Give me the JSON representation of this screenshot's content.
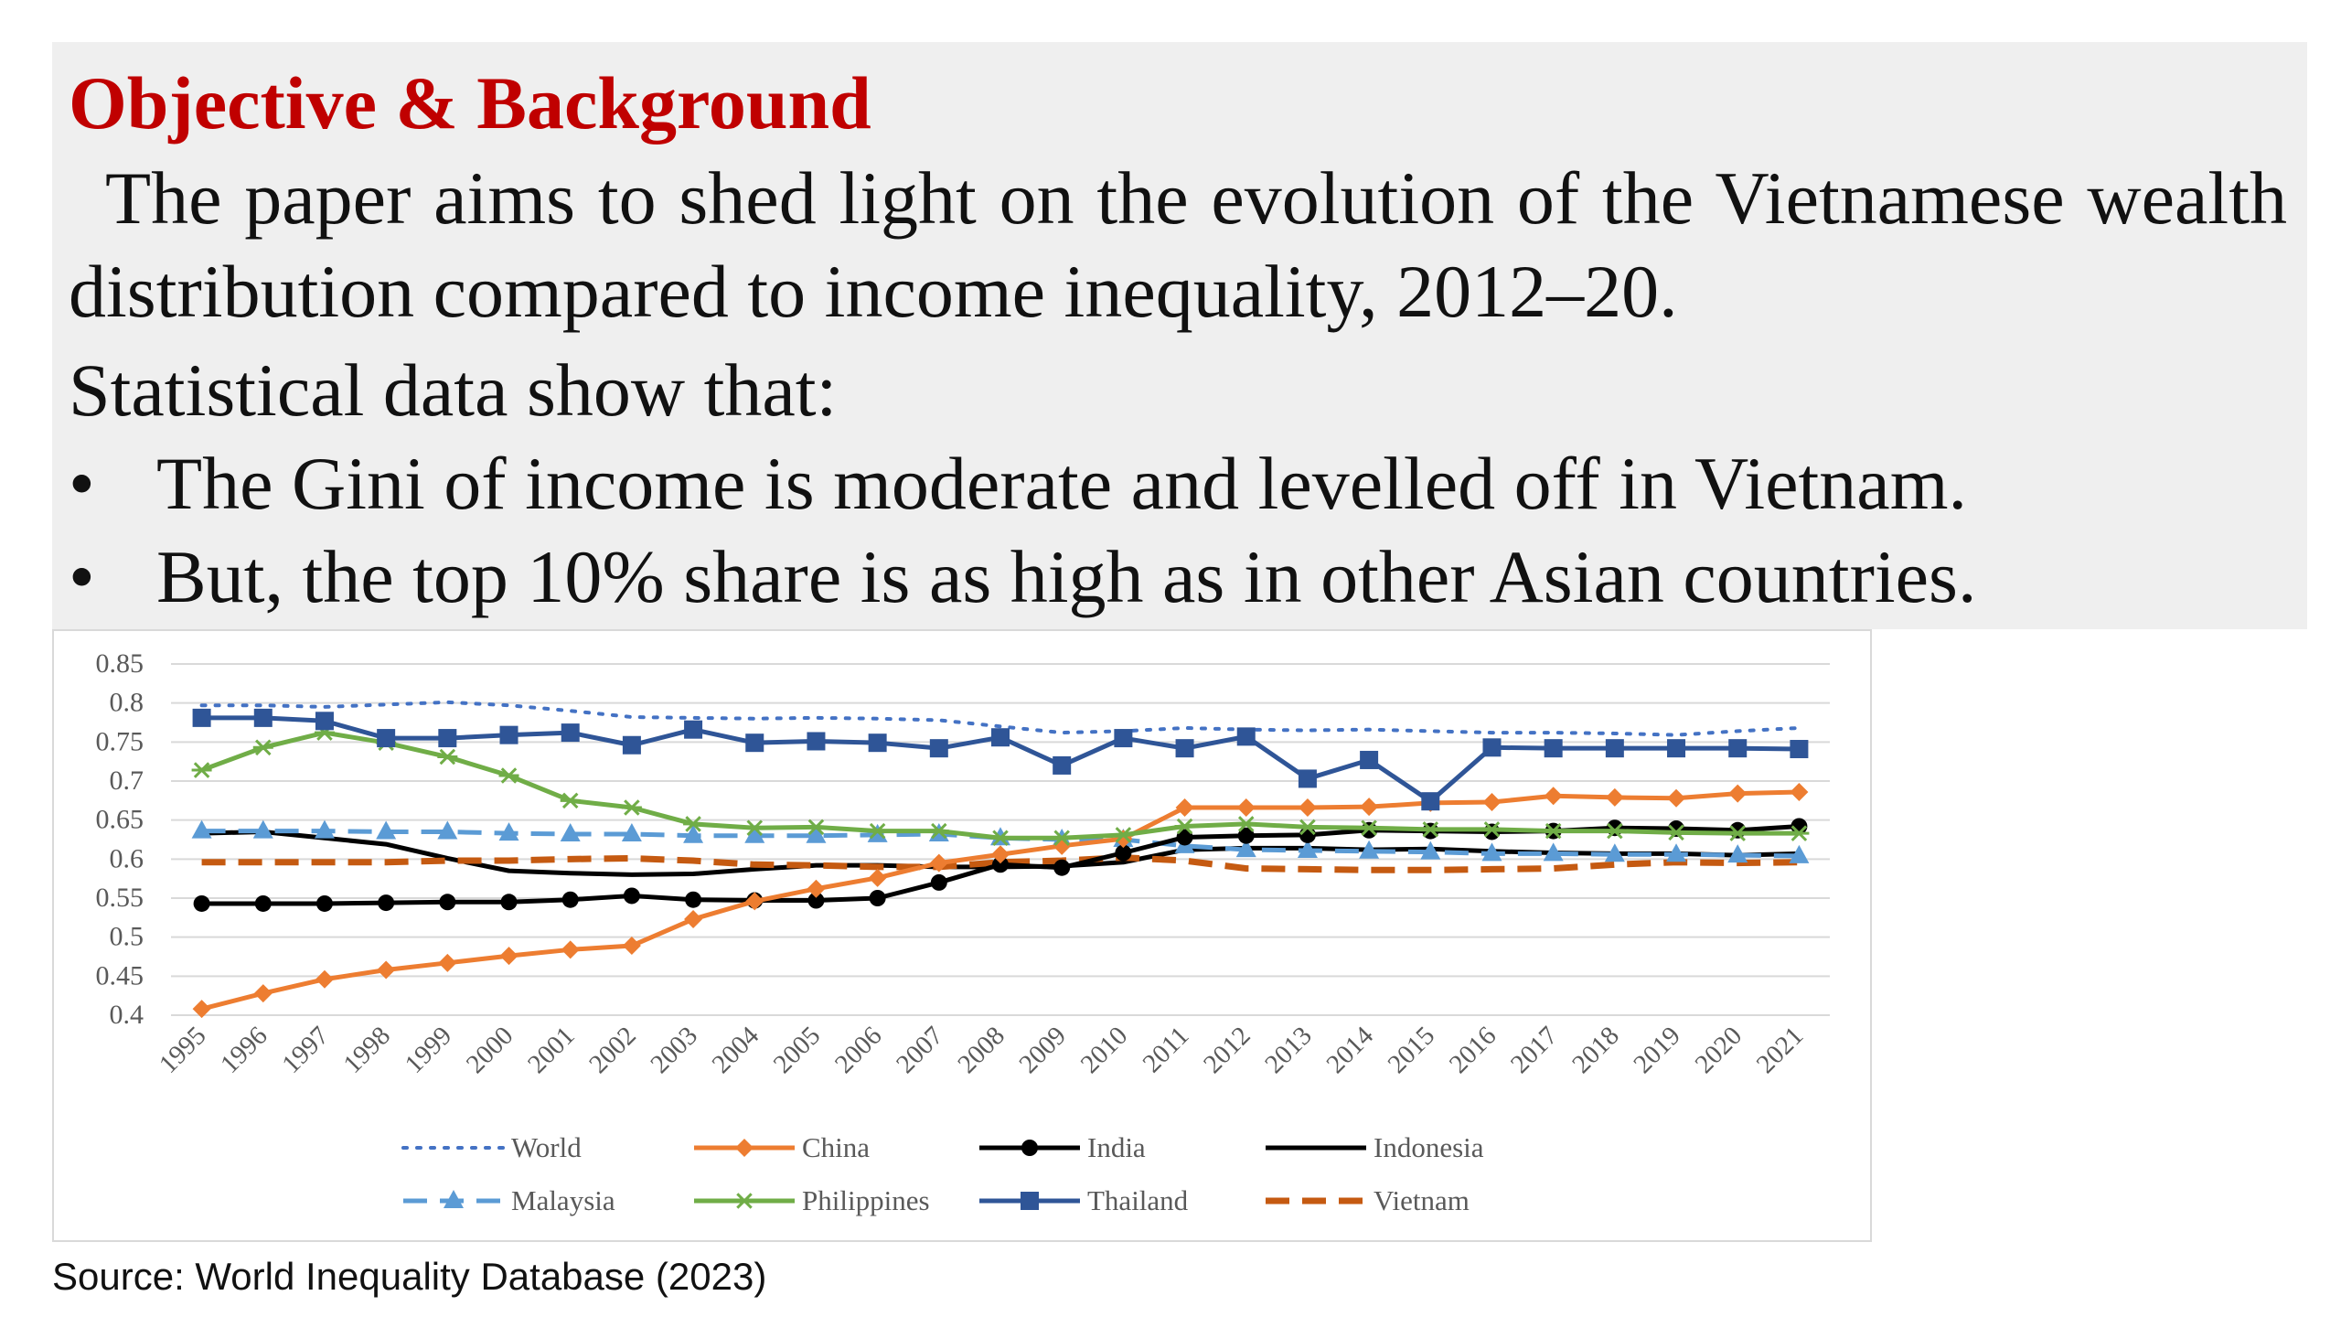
{
  "heading": "Objective & Background",
  "paragraph": "The paper aims to shed light on the evolution of the Vietnamese wealth distribution compared to income inequality, 2012–20.",
  "lead": "Statistical data show that:",
  "bullets": [
    "The Gini of income is moderate and levelled off in Vietnam.",
    "But, the top 10% share is as high as in other Asian countries."
  ],
  "colors": {
    "heading": "#c00000",
    "panel": "#efefef"
  },
  "source": "Source: World Inequality Database (2023)",
  "chart_data": {
    "type": "line",
    "grid": true,
    "legend_position": "bottom",
    "ylim": [
      0.4,
      0.85
    ],
    "y_ticks": [
      "0.85",
      "0.8",
      "0.75",
      "0.7",
      "0.65",
      "0.6",
      "0.55",
      "0.5",
      "0.45",
      "0.4"
    ],
    "categories": [
      "1995",
      "1996",
      "1997",
      "1998",
      "1999",
      "2000",
      "2001",
      "2002",
      "2003",
      "2004",
      "2005",
      "2006",
      "2007",
      "2008",
      "2009",
      "2010",
      "2011",
      "2012",
      "2013",
      "2014",
      "2015",
      "2016",
      "2017",
      "2018",
      "2019",
      "2020",
      "2021"
    ],
    "series": [
      {
        "name": "World",
        "color": "#4472c4",
        "style": "dotted",
        "marker": "none",
        "values": [
          0.797,
          0.797,
          0.795,
          0.798,
          0.801,
          0.797,
          0.79,
          0.782,
          0.781,
          0.78,
          0.781,
          0.78,
          0.778,
          0.77,
          0.762,
          0.764,
          0.768,
          0.766,
          0.765,
          0.766,
          0.764,
          0.762,
          0.762,
          0.761,
          0.759,
          0.764,
          0.768
        ]
      },
      {
        "name": "China",
        "color": "#ed7d31",
        "style": "solid",
        "marker": "diamond",
        "values": [
          0.408,
          0.428,
          0.446,
          0.458,
          0.467,
          0.476,
          0.484,
          0.489,
          0.523,
          0.546,
          0.562,
          0.576,
          0.595,
          0.606,
          0.617,
          0.626,
          0.666,
          0.666,
          0.666,
          0.667,
          0.672,
          0.673,
          0.681,
          0.679,
          0.678,
          0.684,
          0.686
        ]
      },
      {
        "name": "India",
        "color": "#000000",
        "style": "solid",
        "marker": "circle",
        "values": [
          0.543,
          0.543,
          0.543,
          0.544,
          0.545,
          0.545,
          0.548,
          0.553,
          0.548,
          0.547,
          0.547,
          0.55,
          0.57,
          0.593,
          0.589,
          0.608,
          0.628,
          0.63,
          0.631,
          0.637,
          0.636,
          0.635,
          0.636,
          0.64,
          0.639,
          0.637,
          0.642
        ]
      },
      {
        "name": "Indonesia",
        "color": "#000000",
        "style": "solid",
        "marker": "none",
        "values": [
          0.633,
          0.635,
          0.627,
          0.619,
          0.601,
          0.585,
          0.582,
          0.58,
          0.581,
          0.587,
          0.592,
          0.592,
          0.59,
          0.59,
          0.591,
          0.596,
          0.612,
          0.614,
          0.614,
          0.612,
          0.613,
          0.61,
          0.608,
          0.607,
          0.607,
          0.605,
          0.607
        ]
      },
      {
        "name": "Malaysia",
        "color": "#5b9bd5",
        "style": "dashed",
        "marker": "triangle",
        "values": [
          0.636,
          0.636,
          0.636,
          0.635,
          0.635,
          0.633,
          0.632,
          0.632,
          0.63,
          0.63,
          0.63,
          0.631,
          0.632,
          0.627,
          0.625,
          0.625,
          0.617,
          0.612,
          0.611,
          0.61,
          0.609,
          0.607,
          0.607,
          0.606,
          0.606,
          0.605,
          0.604
        ]
      },
      {
        "name": "Philippines",
        "color": "#70ad47",
        "style": "solid",
        "marker": "star",
        "values": [
          0.714,
          0.743,
          0.762,
          0.749,
          0.731,
          0.707,
          0.675,
          0.666,
          0.645,
          0.64,
          0.641,
          0.636,
          0.636,
          0.627,
          0.627,
          0.631,
          0.642,
          0.645,
          0.641,
          0.64,
          0.638,
          0.638,
          0.636,
          0.636,
          0.634,
          0.633,
          0.633
        ]
      },
      {
        "name": "Thailand",
        "color": "#2f5597",
        "style": "solid",
        "marker": "square",
        "values": [
          0.781,
          0.781,
          0.777,
          0.755,
          0.755,
          0.759,
          0.762,
          0.746,
          0.766,
          0.749,
          0.751,
          0.749,
          0.742,
          0.756,
          0.72,
          0.755,
          0.742,
          0.757,
          0.703,
          0.727,
          0.674,
          0.743,
          0.742,
          0.742,
          0.742,
          0.742,
          0.741
        ]
      },
      {
        "name": "Vietnam",
        "color": "#c55a11",
        "style": "longdash",
        "marker": "none",
        "values": [
          0.596,
          0.596,
          0.596,
          0.596,
          0.598,
          0.598,
          0.6,
          0.601,
          0.598,
          0.593,
          0.592,
          0.59,
          0.59,
          0.596,
          0.598,
          0.602,
          0.598,
          0.588,
          0.587,
          0.586,
          0.586,
          0.587,
          0.588,
          0.593,
          0.596,
          0.595,
          0.596
        ]
      }
    ]
  }
}
